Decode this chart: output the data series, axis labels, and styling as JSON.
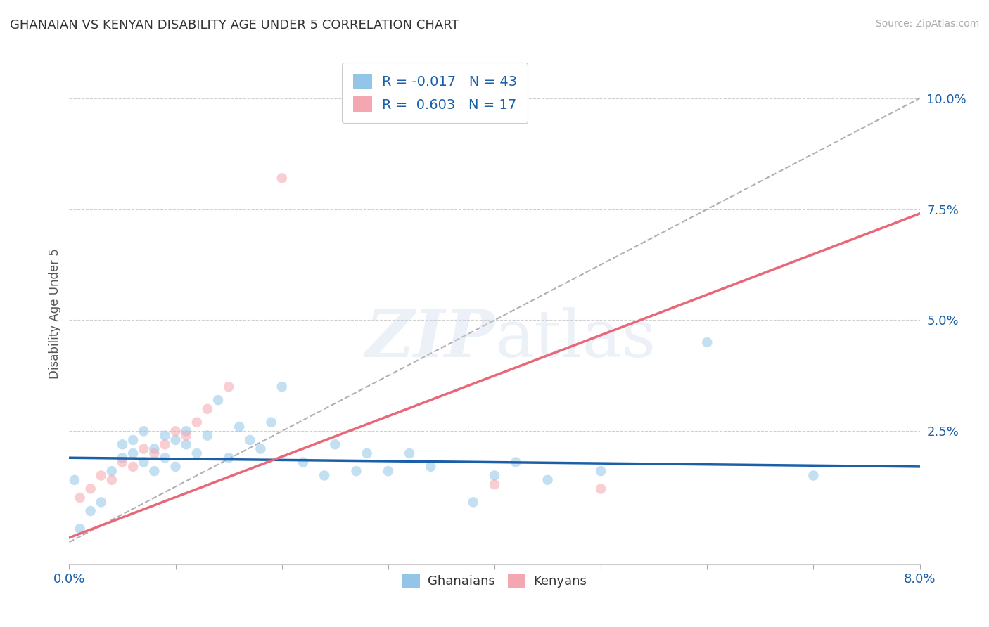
{
  "title": "GHANAIAN VS KENYAN DISABILITY AGE UNDER 5 CORRELATION CHART",
  "source_text": "Source: ZipAtlas.com",
  "ylabel": "Disability Age Under 5",
  "xlim": [
    0.0,
    0.08
  ],
  "ylim": [
    -0.005,
    0.108
  ],
  "xticks": [
    0.0,
    0.01,
    0.02,
    0.03,
    0.04,
    0.05,
    0.06,
    0.07,
    0.08
  ],
  "xtick_labels": [
    "0.0%",
    "",
    "",
    "",
    "",
    "",
    "",
    "",
    "8.0%"
  ],
  "ytick_positions": [
    0.0,
    0.025,
    0.05,
    0.075,
    0.1
  ],
  "ytick_labels": [
    "",
    "2.5%",
    "5.0%",
    "7.5%",
    "10.0%"
  ],
  "ghanaian_color": "#93c5e8",
  "kenyan_color": "#f4a7b0",
  "ghanaian_line_color": "#1a5fa8",
  "kenyan_line_color": "#e8687a",
  "dashed_line_color": "#b0b0b0",
  "grid_color": "#d0d0d0",
  "title_color": "#333333",
  "r_ghanaian": -0.017,
  "n_ghanaian": 43,
  "r_kenyan": 0.603,
  "n_kenyan": 17,
  "ghanaian_line_x0": 0.0,
  "ghanaian_line_x1": 0.08,
  "ghanaian_line_y0": 0.019,
  "ghanaian_line_y1": 0.017,
  "kenyan_line_x0": 0.0,
  "kenyan_line_x1": 0.08,
  "kenyan_line_y0": 0.001,
  "kenyan_line_y1": 0.074,
  "dashed_line_x0": 0.0,
  "dashed_line_x1": 0.08,
  "dashed_line_y0": 0.0,
  "dashed_line_y1": 0.1,
  "ghanaian_x": [
    0.0005,
    0.001,
    0.002,
    0.003,
    0.004,
    0.005,
    0.005,
    0.006,
    0.006,
    0.007,
    0.007,
    0.008,
    0.008,
    0.009,
    0.009,
    0.01,
    0.01,
    0.011,
    0.011,
    0.012,
    0.013,
    0.014,
    0.015,
    0.016,
    0.017,
    0.018,
    0.019,
    0.02,
    0.022,
    0.024,
    0.025,
    0.027,
    0.028,
    0.03,
    0.032,
    0.034,
    0.038,
    0.04,
    0.042,
    0.045,
    0.05,
    0.06,
    0.07
  ],
  "ghanaian_y": [
    0.014,
    0.003,
    0.007,
    0.009,
    0.016,
    0.019,
    0.022,
    0.02,
    0.023,
    0.025,
    0.018,
    0.021,
    0.016,
    0.024,
    0.019,
    0.023,
    0.017,
    0.022,
    0.025,
    0.02,
    0.024,
    0.032,
    0.019,
    0.026,
    0.023,
    0.021,
    0.027,
    0.035,
    0.018,
    0.015,
    0.022,
    0.016,
    0.02,
    0.016,
    0.02,
    0.017,
    0.009,
    0.015,
    0.018,
    0.014,
    0.016,
    0.045,
    0.015
  ],
  "kenyan_x": [
    0.001,
    0.002,
    0.003,
    0.004,
    0.005,
    0.006,
    0.007,
    0.008,
    0.009,
    0.01,
    0.011,
    0.012,
    0.013,
    0.015,
    0.02,
    0.04,
    0.05
  ],
  "kenyan_y": [
    0.01,
    0.012,
    0.015,
    0.014,
    0.018,
    0.017,
    0.021,
    0.02,
    0.022,
    0.025,
    0.024,
    0.027,
    0.03,
    0.035,
    0.082,
    0.013,
    0.012
  ],
  "marker_size": 110,
  "scatter_alpha": 0.55,
  "watermark_color": "#c8d8ea",
  "watermark_alpha": 0.35
}
